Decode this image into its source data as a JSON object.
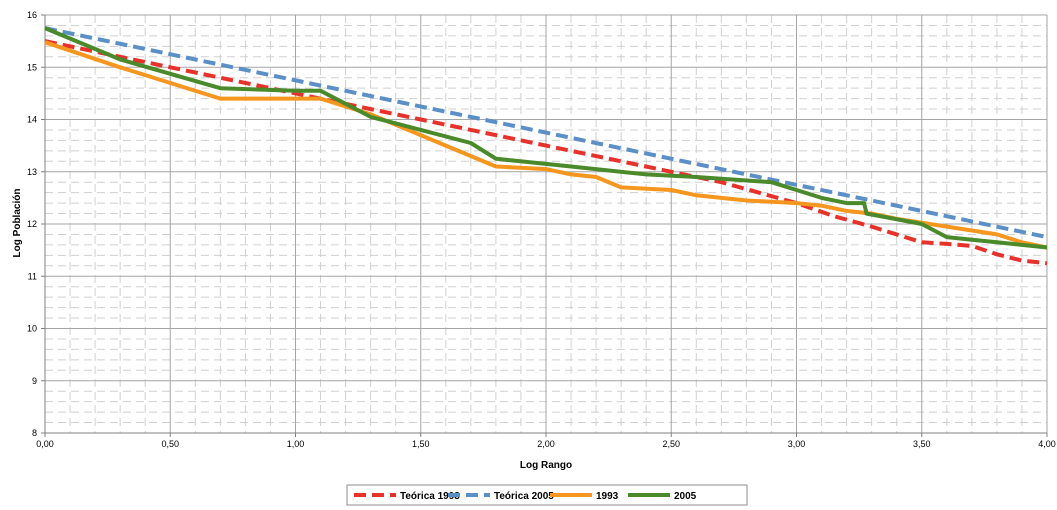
{
  "chart_data": {
    "type": "line",
    "title": "",
    "xlabel": "Log Rango",
    "ylabel": "Log Población",
    "xlim": [
      0,
      4
    ],
    "ylim": [
      8,
      16
    ],
    "x_ticks": [
      "0,00",
      "0,50",
      "1,00",
      "1,50",
      "2,00",
      "2,50",
      "3,00",
      "3,50",
      "4,00"
    ],
    "y_ticks": [
      "8",
      "9",
      "10",
      "11",
      "12",
      "13",
      "14",
      "15",
      "16"
    ],
    "grid": true,
    "legend_position": "bottom",
    "series": [
      {
        "name": "Teórica 1993",
        "color": "#e8312a",
        "style": "dashed",
        "x": [
          0.0,
          0.5,
          1.0,
          1.5,
          2.0,
          2.5,
          2.7,
          3.0,
          3.15,
          3.3,
          3.5,
          3.6,
          3.7,
          3.8,
          3.9,
          4.0
        ],
        "y": [
          15.5,
          15.0,
          14.5,
          14.0,
          13.5,
          13.0,
          12.8,
          12.4,
          12.15,
          11.95,
          11.65,
          11.62,
          11.58,
          11.42,
          11.3,
          11.25
        ]
      },
      {
        "name": "Teórica 2005",
        "color": "#5b8fc7",
        "style": "dashed",
        "x": [
          0.0,
          4.0
        ],
        "y": [
          15.75,
          11.75
        ]
      },
      {
        "name": "1993",
        "color": "#f5961e",
        "style": "solid",
        "x": [
          0.0,
          0.3,
          0.7,
          1.0,
          1.1,
          1.3,
          1.6,
          1.8,
          2.0,
          2.1,
          2.2,
          2.3,
          2.5,
          2.6,
          2.7,
          2.8,
          3.0,
          3.1,
          3.2,
          3.3,
          3.4,
          3.6,
          3.8,
          3.9,
          4.0
        ],
        "y": [
          15.48,
          15.0,
          14.4,
          14.4,
          14.4,
          14.1,
          13.5,
          13.1,
          13.05,
          12.95,
          12.9,
          12.7,
          12.65,
          12.55,
          12.5,
          12.45,
          12.4,
          12.35,
          12.25,
          12.2,
          12.1,
          11.95,
          11.8,
          11.65,
          11.55
        ]
      },
      {
        "name": "2005",
        "color": "#4a8a2a",
        "style": "solid",
        "x": [
          0.0,
          0.3,
          0.7,
          1.0,
          1.1,
          1.3,
          1.5,
          1.7,
          1.8,
          2.0,
          2.1,
          2.4,
          2.6,
          2.9,
          3.0,
          3.1,
          3.2,
          3.27,
          3.28,
          3.5,
          3.6,
          3.7,
          3.8,
          3.9,
          4.0
        ],
        "y": [
          15.75,
          15.15,
          14.6,
          14.55,
          14.55,
          14.05,
          13.8,
          13.55,
          13.25,
          13.15,
          13.1,
          12.95,
          12.9,
          12.8,
          12.65,
          12.5,
          12.4,
          12.4,
          12.2,
          12.0,
          11.75,
          11.7,
          11.65,
          11.6,
          11.55
        ]
      }
    ]
  }
}
